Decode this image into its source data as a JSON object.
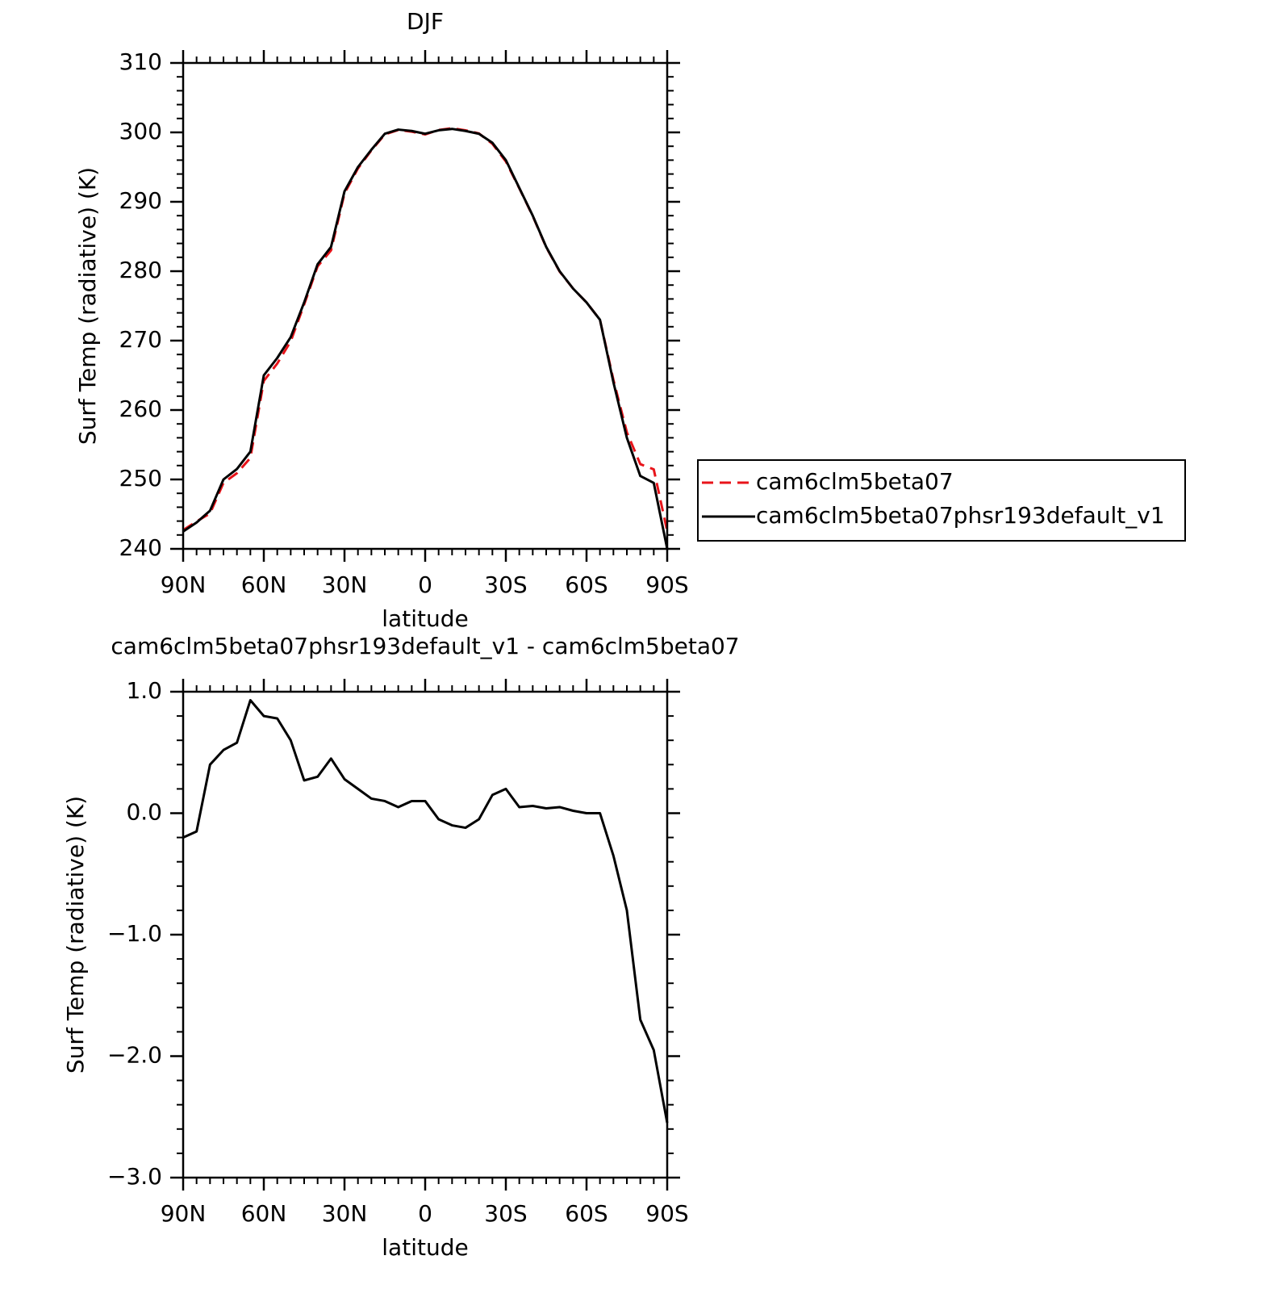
{
  "chart_data": [
    {
      "type": "line",
      "title": "DJF",
      "xlabel": "latitude",
      "ylabel": "Surf Temp (radiative) (K)",
      "x": [
        90,
        85,
        80,
        75,
        70,
        65,
        60,
        55,
        50,
        45,
        40,
        35,
        30,
        25,
        20,
        15,
        10,
        5,
        0,
        -5,
        -10,
        -15,
        -20,
        -25,
        -30,
        -35,
        -40,
        -45,
        -50,
        -55,
        -60,
        -65,
        -70,
        -75,
        -80,
        -85,
        -90
      ],
      "xlim": [
        90,
        -90
      ],
      "xticks": [
        {
          "value": 90,
          "label": "90N"
        },
        {
          "value": 60,
          "label": "60N"
        },
        {
          "value": 30,
          "label": "30N"
        },
        0,
        {
          "value": -30,
          "label": "30S"
        },
        {
          "value": -60,
          "label": "60S"
        },
        {
          "value": -90,
          "label": "90S"
        }
      ],
      "ylim": [
        240,
        310
      ],
      "yticks": [
        240,
        250,
        260,
        270,
        280,
        290,
        300,
        310
      ],
      "legend": "right",
      "series": [
        {
          "name": "cam6clm5beta07",
          "color": "#e8141a",
          "dash": "dashed",
          "values": [
            242.7,
            243.95,
            245.1,
            249.5,
            250.9,
            253.1,
            264.2,
            266.7,
            269.9,
            275.2,
            280.7,
            283.0,
            291.2,
            294.8,
            297.4,
            299.7,
            300.35,
            300.1,
            299.7,
            300.35,
            300.6,
            300.3,
            299.85,
            298.35,
            295.8,
            291.95,
            287.95,
            283.45,
            279.95,
            277.5,
            275.5,
            273,
            264.35,
            256.8,
            252.2,
            251.45,
            242.55
          ]
        },
        {
          "name": "cam6clm5beta07phsr193default_v1",
          "color": "#000000",
          "dash": "solid",
          "values": [
            242.5,
            243.8,
            245.5,
            250,
            251.5,
            254,
            265,
            267.5,
            270.5,
            275.5,
            281,
            283.5,
            291.5,
            295,
            297.5,
            299.8,
            300.4,
            300.2,
            299.8,
            300.3,
            300.5,
            300.2,
            299.8,
            298.5,
            296,
            292,
            288,
            283.5,
            280,
            277.5,
            275.5,
            273,
            264,
            256,
            250.5,
            249.5,
            240
          ]
        }
      ]
    },
    {
      "type": "line",
      "title": "cam6clm5beta07phsr193default_v1 - cam6clm5beta07",
      "xlabel": "latitude",
      "ylabel": "Surf Temp (radiative) (K)",
      "x": [
        90,
        85,
        80,
        75,
        70,
        65,
        60,
        55,
        50,
        45,
        40,
        35,
        30,
        25,
        20,
        15,
        10,
        5,
        0,
        -5,
        -10,
        -15,
        -20,
        -25,
        -30,
        -35,
        -40,
        -45,
        -50,
        -55,
        -60,
        -65,
        -70,
        -75,
        -80,
        -85,
        -90
      ],
      "xlim": [
        90,
        -90
      ],
      "xticks": [
        {
          "value": 90,
          "label": "90N"
        },
        {
          "value": 60,
          "label": "60N"
        },
        {
          "value": 30,
          "label": "30N"
        },
        0,
        {
          "value": -30,
          "label": "30S"
        },
        {
          "value": -60,
          "label": "60S"
        },
        {
          "value": -90,
          "label": "90S"
        }
      ],
      "ylim": [
        -3,
        1
      ],
      "yticks": [
        {
          "value": -3,
          "label": "−3.0"
        },
        {
          "value": -2,
          "label": "−2.0"
        },
        {
          "value": -1,
          "label": "−1.0"
        },
        {
          "value": 0,
          "label": "0.0"
        },
        {
          "value": 1,
          "label": "1.0"
        }
      ],
      "series": [
        {
          "color": "#000000",
          "dash": "solid",
          "values": [
            -0.2,
            -0.15,
            0.4,
            0.52,
            0.58,
            0.93,
            0.8,
            0.78,
            0.6,
            0.27,
            0.3,
            0.45,
            0.28,
            0.2,
            0.12,
            0.1,
            0.05,
            0.1,
            0.1,
            -0.05,
            -0.1,
            -0.12,
            -0.05,
            0.15,
            0.2,
            0.05,
            0.06,
            0.04,
            0.05,
            0.02,
            0.0,
            0.0,
            -0.35,
            -0.8,
            -1.7,
            -1.95,
            -2.55
          ]
        }
      ]
    }
  ]
}
